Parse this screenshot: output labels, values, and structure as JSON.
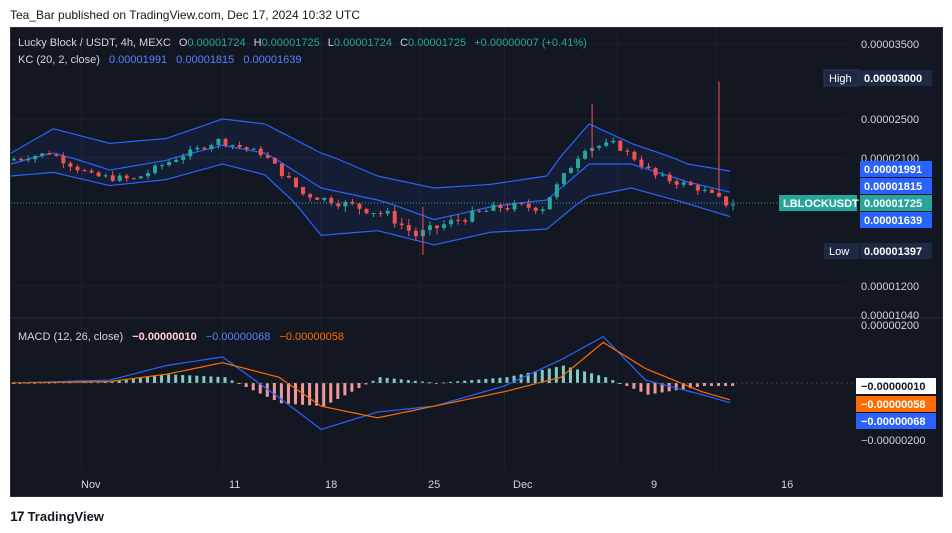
{
  "header": {
    "published": "Tea_Bar published on TradingView.com, Dec 17, 2024 10:32 UTC"
  },
  "legend": {
    "symbol": "Lucky Block / USDT, 4h, MEXC",
    "o_label": "O",
    "o": "0.00001724",
    "h_label": "H",
    "h": "0.00001725",
    "l_label": "L",
    "l": "0.00001724",
    "c_label": "C",
    "c": "0.00001725",
    "change": "+0.00000007 (+0.41%)",
    "kc_label": "KC (20, 2, close)",
    "kc_upper": "0.00001991",
    "kc_mid": "0.00001815",
    "kc_lower": "0.00001639"
  },
  "macd_legend": {
    "label": "MACD (12, 26, close)",
    "hist": "−0.00000010",
    "macd": "−0.00000068",
    "signal": "−0.00000058"
  },
  "price_axis": {
    "ticks": [
      "0.00003500",
      "0.00002500",
      "0.00002100",
      "0.00001200",
      "0.00001040"
    ],
    "high_label": "High",
    "high": "0.00003000",
    "low_label": "Low",
    "low": "0.00001397",
    "upper_tag": "0.00001991",
    "mid_tag": "0.00001815",
    "symbol_tag": "LBLOCKUSDT",
    "last_tag": "0.00001725",
    "lower_tag": "0.00001639"
  },
  "macd_axis": {
    "ticks": [
      "0.00000200",
      "−0.00000200"
    ],
    "hist_tag": "−0.00000010",
    "signal_tag": "−0.00000058",
    "macd_tag": "−0.00000068"
  },
  "time_axis": [
    "Nov",
    "11",
    "18",
    "25",
    "Dec",
    "9",
    "16"
  ],
  "colors": {
    "bg": "#131722",
    "up": "#26a69a",
    "down": "#ef5350",
    "kc": "#2962ff",
    "macd": "#2962ff",
    "signal": "#ff6d00",
    "grid": "#1e222d"
  },
  "footer": {
    "brand": "TradingView"
  },
  "chart_data": {
    "type": "candlestick",
    "symbol": "Lucky Block / USDT",
    "interval": "4h",
    "exchange": "MEXC",
    "kc_anchor": [
      {
        "date": "Oct 27",
        "upper": 2.15e-05,
        "mid": 2.05e-05,
        "lower": 1.95e-05
      },
      {
        "date": "Oct 30",
        "upper": 2.4e-05,
        "mid": 2.15e-05,
        "lower": 1.98e-05
      },
      {
        "date": "Nov 03",
        "upper": 2.25e-05,
        "mid": 2e-05,
        "lower": 1.87e-05
      },
      {
        "date": "Nov 07",
        "upper": 2.3e-05,
        "mid": 2.08e-05,
        "lower": 1.92e-05
      },
      {
        "date": "Nov 11",
        "upper": 2.5e-05,
        "mid": 2.23e-05,
        "lower": 2.05e-05
      },
      {
        "date": "Nov 14",
        "upper": 2.45e-05,
        "mid": 2.15e-05,
        "lower": 1.96e-05
      },
      {
        "date": "Nov 18",
        "upper": 2.15e-05,
        "mid": 1.85e-05,
        "lower": 1.52e-05
      },
      {
        "date": "Nov 22",
        "upper": 1.95e-05,
        "mid": 1.75e-05,
        "lower": 1.55e-05
      },
      {
        "date": "Nov 26",
        "upper": 1.85e-05,
        "mid": 1.62e-05,
        "lower": 1.46e-05
      },
      {
        "date": "Nov 30",
        "upper": 1.88e-05,
        "mid": 1.7e-05,
        "lower": 1.54e-05
      },
      {
        "date": "Dec 04",
        "upper": 1.95e-05,
        "mid": 1.75e-05,
        "lower": 1.56e-05
      },
      {
        "date": "Dec 07",
        "upper": 2.45e-05,
        "mid": 2.05e-05,
        "lower": 1.78e-05
      },
      {
        "date": "Dec 10",
        "upper": 2.25e-05,
        "mid": 2.05e-05,
        "lower": 1.85e-05
      },
      {
        "date": "Dec 14",
        "upper": 2.05e-05,
        "mid": 1.9e-05,
        "lower": 1.72e-05
      },
      {
        "date": "Dec 17",
        "upper": 1.991e-05,
        "mid": 1.815e-05,
        "lower": 1.639e-05
      }
    ],
    "close_anchor": [
      {
        "date": "Oct 27",
        "close": 2.08e-05
      },
      {
        "date": "Oct 30",
        "close": 2.15e-05
      },
      {
        "date": "Nov 02",
        "close": 1.95e-05
      },
      {
        "date": "Nov 05",
        "close": 1.92e-05
      },
      {
        "date": "Nov 08",
        "close": 2.1e-05
      },
      {
        "date": "Nov 11",
        "close": 2.28e-05
      },
      {
        "date": "Nov 14",
        "close": 2.15e-05
      },
      {
        "date": "Nov 17",
        "close": 1.8e-05
      },
      {
        "date": "Nov 20",
        "close": 1.72e-05
      },
      {
        "date": "Nov 23",
        "close": 1.65e-05
      },
      {
        "date": "Nov 25",
        "close": 1.52e-05
      },
      {
        "date": "Nov 28",
        "close": 1.62e-05
      },
      {
        "date": "Dec 01",
        "close": 1.7e-05
      },
      {
        "date": "Dec 04",
        "close": 1.7e-05
      },
      {
        "date": "Dec 07",
        "close": 2.2e-05
      },
      {
        "date": "Dec 09",
        "close": 2.25e-05
      },
      {
        "date": "Dec 12",
        "close": 1.95e-05
      },
      {
        "date": "Dec 15",
        "close": 1.85e-05
      },
      {
        "date": "Dec 17",
        "close": 1.725e-05
      }
    ],
    "macd_anchor": [
      {
        "date": "Oct 27",
        "macd": 0.0,
        "signal": 0.0,
        "hist": 0.0
      },
      {
        "date": "Nov 03",
        "macd": 1e-07,
        "signal": 5e-08,
        "hist": 5e-08
      },
      {
        "date": "Nov 07",
        "macd": 6e-07,
        "signal": 3e-07,
        "hist": 3e-07
      },
      {
        "date": "Nov 11",
        "macd": 9e-07,
        "signal": 7e-07,
        "hist": 2e-07
      },
      {
        "date": "Nov 15",
        "macd": -5e-07,
        "signal": 2e-07,
        "hist": -7e-07
      },
      {
        "date": "Nov 18",
        "macd": -1.6e-06,
        "signal": -8e-07,
        "hist": -8e-07
      },
      {
        "date": "Nov 22",
        "macd": -1e-06,
        "signal": -1.2e-06,
        "hist": 2e-07
      },
      {
        "date": "Nov 26",
        "macd": -8e-07,
        "signal": -8e-07,
        "hist": 0.0
      },
      {
        "date": "Dec 01",
        "macd": -1e-07,
        "signal": -3e-07,
        "hist": 2e-07
      },
      {
        "date": "Dec 05",
        "macd": 8e-07,
        "signal": 2e-07,
        "hist": 6e-07
      },
      {
        "date": "Dec 08",
        "macd": 1.6e-06,
        "signal": 1.4e-06,
        "hist": 2e-07
      },
      {
        "date": "Dec 11",
        "macd": 1e-07,
        "signal": 5e-07,
        "hist": -4e-07
      },
      {
        "date": "Dec 15",
        "macd": -4e-07,
        "signal": -3e-07,
        "hist": -1e-07
      },
      {
        "date": "Dec 17",
        "macd": -6.8e-07,
        "signal": -5.8e-07,
        "hist": -1e-07
      }
    ],
    "last_price": 1.725e-05,
    "high": 3e-05,
    "low": 1.397e-05
  }
}
